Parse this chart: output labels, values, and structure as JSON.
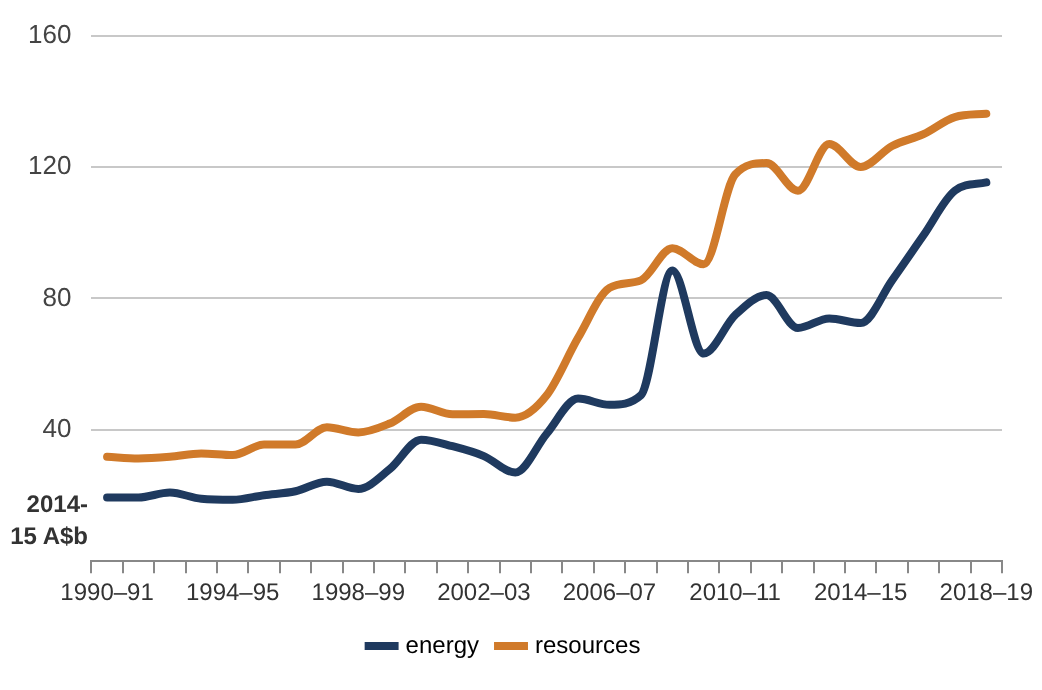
{
  "chart_data": {
    "type": "line",
    "ylabel": "2014-15 A$b",
    "categories": [
      "1990–91",
      null,
      null,
      null,
      "1994–95",
      null,
      null,
      null,
      "1998–99",
      null,
      null,
      null,
      "2002–03",
      null,
      null,
      null,
      "2006–07",
      null,
      null,
      null,
      "2010–11",
      null,
      null,
      null,
      "2014–15",
      null,
      null,
      null,
      "2018–19"
    ],
    "series": [
      {
        "name": "energy",
        "color": "#1f3a5f",
        "values": [
          19.4,
          19.4,
          20.9,
          19,
          18.7,
          20.1,
          21.3,
          24.2,
          22,
          28,
          37,
          35,
          32,
          27,
          38.8,
          49.5,
          47.6,
          50.5,
          88.5,
          63.2,
          74.9,
          81,
          71,
          73.9,
          72.5,
          85.5,
          99.2,
          112.8,
          115.3
        ]
      },
      {
        "name": "resources",
        "color": "#d07a2a",
        "values": [
          31.8,
          31.3,
          31.8,
          32.8,
          32.3,
          35.5,
          35.5,
          40.8,
          39.2,
          41.9,
          47,
          44.7,
          44.8,
          43.7,
          50.5,
          68,
          83.2,
          85.5,
          95.3,
          90.4,
          117.7,
          121.2,
          112.8,
          127,
          120,
          126.4,
          130,
          135.2,
          136.2
        ]
      }
    ],
    "ylim": [
      0,
      160
    ],
    "yticks": [
      {
        "value": 0,
        "label": null
      },
      40,
      80,
      120,
      160
    ],
    "grid": "y",
    "legend": "bottom",
    "marker": "none",
    "line_style": "solid"
  }
}
